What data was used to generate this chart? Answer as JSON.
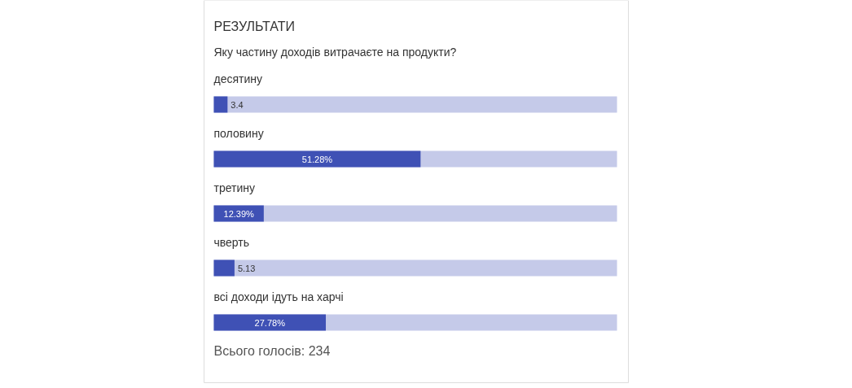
{
  "chart_data": {
    "type": "bar",
    "orientation": "horizontal",
    "title": "РЕЗУЛЬТАТИ",
    "subtitle": "Яку частину доходів витрачаєте на продукти?",
    "categories": [
      "десятину",
      "половину",
      "третину",
      "чверть",
      "всі доходи ідуть на харчі"
    ],
    "values": [
      3.4,
      51.28,
      12.39,
      5.13,
      27.78
    ],
    "value_labels": [
      "3.4",
      "51.28%",
      "12.39%",
      "5.13",
      "27.78%"
    ],
    "color": "#3f51b5",
    "xlim": [
      0,
      100
    ],
    "annotations": [
      "Всього голосів: 234"
    ],
    "grid": false
  }
}
